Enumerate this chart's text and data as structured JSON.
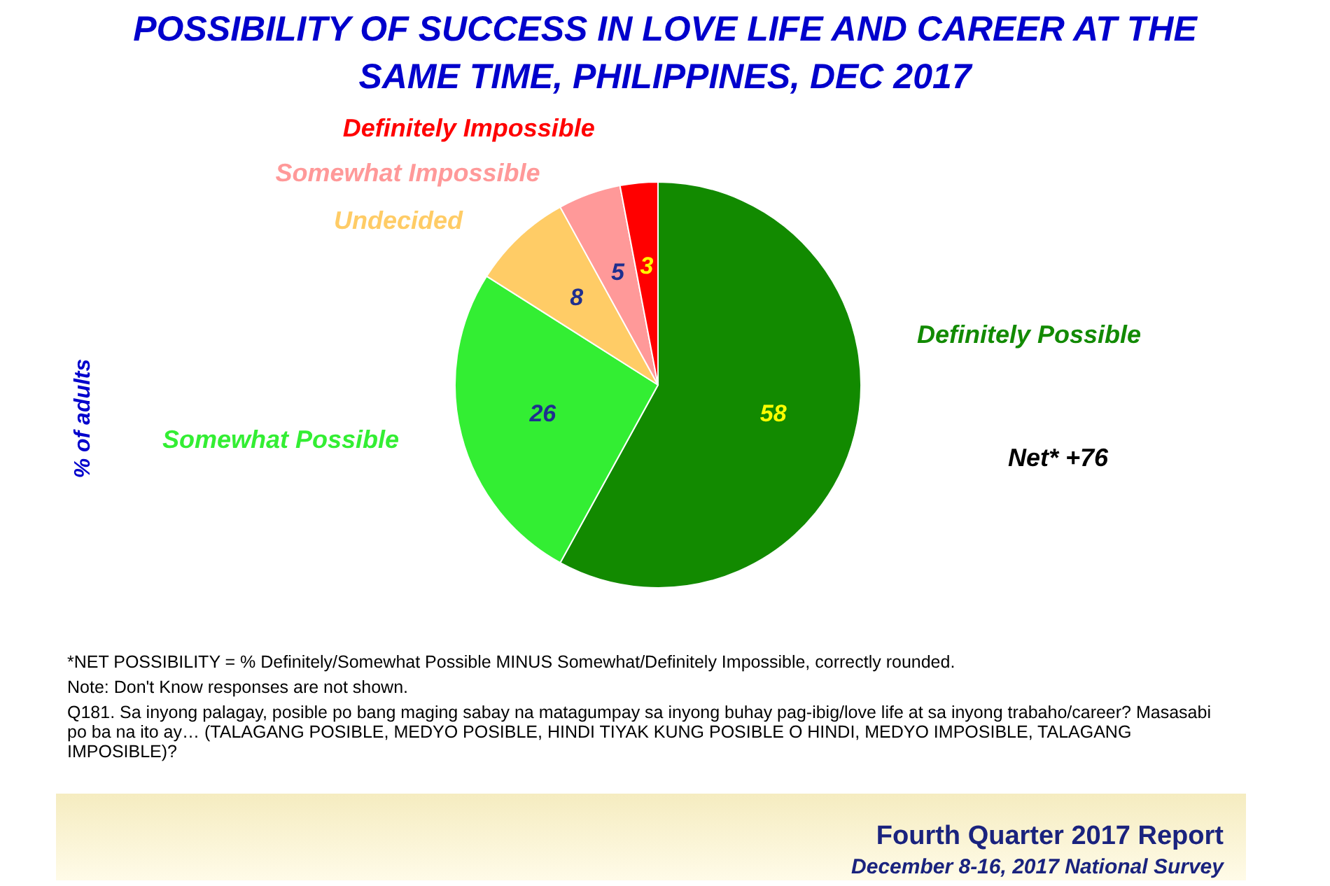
{
  "chart_data": {
    "type": "pie",
    "title": "POSSIBILITY OF SUCCESS IN LOVE LIFE AND CAREER AT THE SAME TIME, PHILIPPINES, DEC 2017",
    "ylabel": "% of adults",
    "categories": [
      "Definitely Possible",
      "Somewhat Possible",
      "Undecided",
      "Somewhat Impossible",
      "Definitely Impossible"
    ],
    "values": [
      58,
      26,
      8,
      5,
      3
    ],
    "colors": [
      "#128a00",
      "#33ee33",
      "#ffcc66",
      "#ff9999",
      "#ff0000"
    ],
    "data_labels": true,
    "annotations": [
      "Net* +76",
      "*NET POSSIBILITY = % Definitely/Somewhat Possible MINUS Somewhat/Definitely Impossible, correctly rounded.",
      "Note: Don't Know responses are not shown.",
      "Q181. Sa inyong palagay, posible po bang maging sabay na matagumpay sa inyong buhay pag-ibig/love  life at sa inyong trabaho/career? Masasabi po ba na ito ay… (TALAGANG POSIBLE, MEDYO POSIBLE, HINDI TIYAK KUNG POSIBLE O HINDI, MEDYO IMPOSIBLE, TALAGANG IMPOSIBLE)?",
      "Fourth Quarter 2017 Report",
      "December 8-16, 2017 National Survey"
    ]
  }
}
